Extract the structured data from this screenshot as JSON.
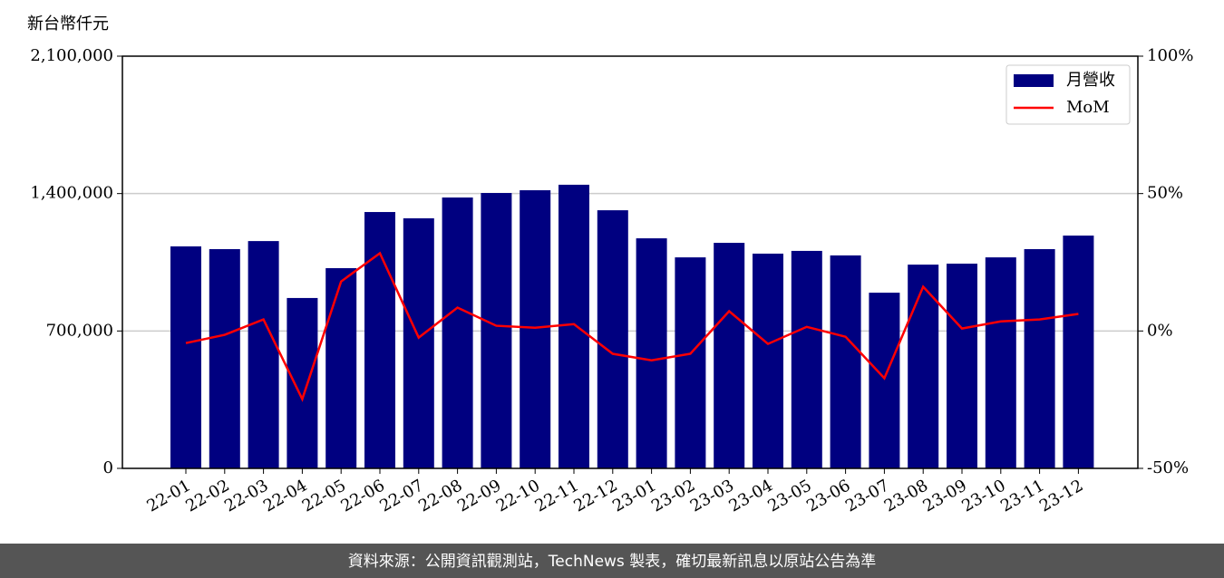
{
  "chart_data": {
    "type": "bar",
    "y_axis_label": "新台幣仟元",
    "categories": [
      "22-01",
      "22-02",
      "22-03",
      "22-04",
      "22-05",
      "22-06",
      "22-07",
      "22-08",
      "22-09",
      "22-10",
      "22-11",
      "22-12",
      "23-01",
      "23-02",
      "23-03",
      "23-04",
      "23-05",
      "23-06",
      "23-07",
      "23-08",
      "23-09",
      "23-10",
      "23-11",
      "23-12"
    ],
    "series": [
      {
        "name": "月營收",
        "type": "bar",
        "color": "#000080",
        "values": [
          1131000,
          1117000,
          1158000,
          868000,
          1020000,
          1306000,
          1274000,
          1380000,
          1403000,
          1417000,
          1445000,
          1315000,
          1172000,
          1075000,
          1149000,
          1094000,
          1108000,
          1085000,
          895000,
          1038000,
          1043000,
          1075000,
          1117000,
          1186000
        ]
      },
      {
        "name": "MoM",
        "type": "line",
        "axis": "y2",
        "color": "#ff0000",
        "values": [
          -4.4,
          -1.4,
          4.2,
          -24.8,
          18.0,
          28.3,
          -2.4,
          8.5,
          1.9,
          1.2,
          2.5,
          -8.3,
          -10.7,
          -8.3,
          7.2,
          -4.7,
          1.5,
          -2.1,
          -17.2,
          16.1,
          0.9,
          3.5,
          4.2,
          6.2
        ]
      }
    ],
    "ylim": [
      0,
      2100000
    ],
    "yticks": [
      0,
      {
        "value": 700000,
        "label": "700,000"
      },
      {
        "value": 1400000,
        "label": "1,400,000"
      },
      {
        "value": 2100000,
        "label": "2,100,000"
      }
    ],
    "y2lim": [
      -50,
      100
    ],
    "y2ticks": [
      {
        "value": -50,
        "label": "-50%"
      },
      {
        "value": 0,
        "label": "0%"
      },
      {
        "value": 50,
        "label": "50%"
      },
      {
        "value": 100,
        "label": "100%"
      }
    ],
    "grid": true,
    "legend": "upper right",
    "footer": "資料來源：公開資訊觀測站，TechNews 製表，確切最新訊息以原站公告為準"
  }
}
